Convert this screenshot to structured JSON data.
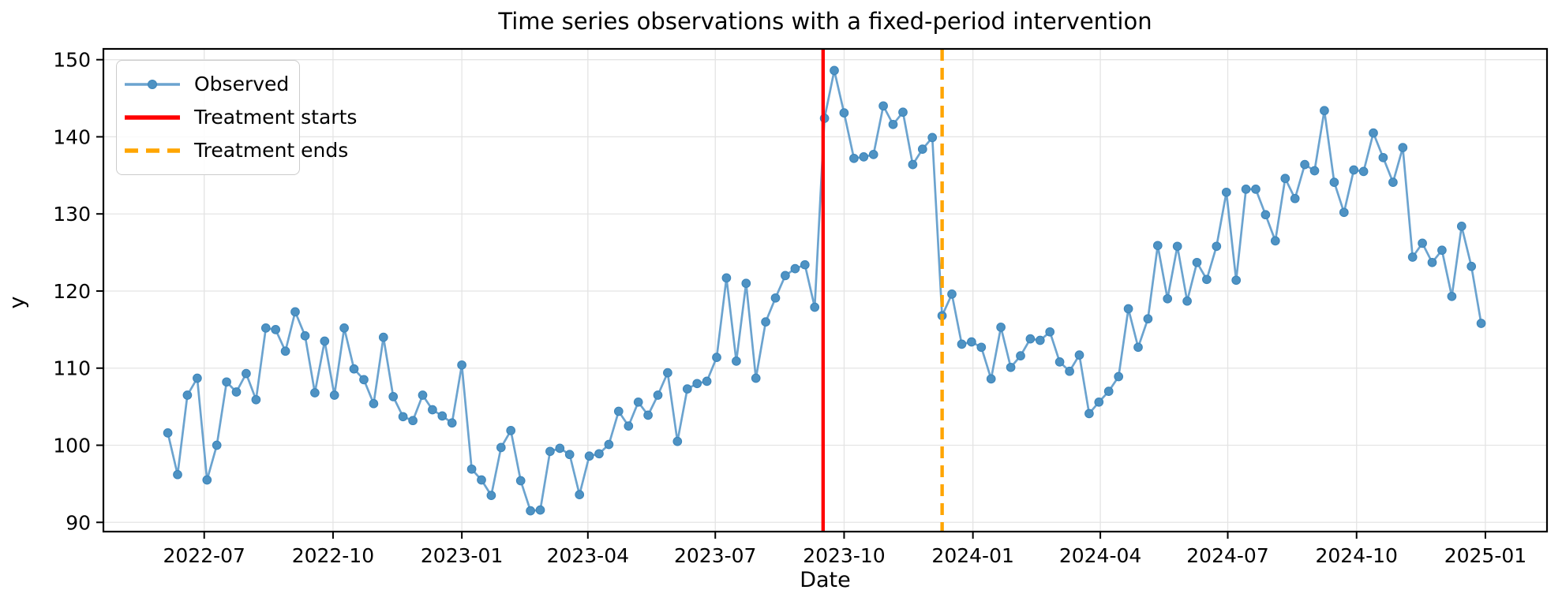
{
  "chart_data": {
    "type": "line",
    "title": "Time series observations with a fixed-period intervention",
    "xlabel": "Date",
    "ylabel": "y",
    "legend": {
      "position": "upper left",
      "entries": {
        "observed": "Observed",
        "treatment_start": "Treatment starts",
        "treatment_end": "Treatment ends"
      }
    },
    "series": {
      "name": "Observed",
      "start_date": "2022-06-05",
      "frequency_days": 7,
      "values": [
        101.6,
        96.2,
        106.5,
        108.7,
        95.5,
        100.0,
        108.2,
        106.9,
        109.3,
        105.9,
        115.2,
        115.0,
        112.2,
        117.3,
        114.2,
        106.8,
        113.5,
        106.5,
        115.2,
        109.9,
        108.5,
        105.4,
        114.0,
        106.3,
        103.7,
        103.2,
        106.5,
        104.6,
        103.8,
        102.9,
        110.4,
        96.9,
        95.5,
        93.5,
        99.7,
        101.9,
        95.4,
        91.5,
        91.6,
        99.2,
        99.6,
        98.8,
        93.6,
        98.6,
        98.9,
        100.1,
        104.4,
        102.5,
        105.6,
        103.9,
        106.5,
        109.4,
        100.5,
        107.3,
        108.0,
        108.3,
        111.4,
        121.7,
        110.9,
        121.0,
        108.7,
        116.0,
        119.1,
        122.0,
        122.9,
        123.4,
        117.9,
        142.4,
        148.6,
        143.1,
        137.2,
        137.4,
        137.7,
        144.0,
        141.6,
        143.2,
        136.4,
        138.4,
        139.9,
        116.8,
        119.6,
        113.1,
        113.4,
        112.7,
        108.6,
        115.3,
        110.1,
        111.6,
        113.8,
        113.6,
        114.7,
        110.8,
        109.6,
        111.7,
        104.1,
        105.6,
        107.0,
        108.9,
        117.7,
        112.7,
        116.4,
        125.9,
        119.0,
        125.8,
        118.7,
        123.7,
        121.5,
        125.8,
        132.8,
        121.4,
        133.2,
        133.2,
        129.9,
        126.5,
        134.6,
        132.0,
        136.4,
        135.6,
        143.4,
        134.1,
        130.2,
        135.7,
        135.5,
        140.5,
        137.3,
        134.1,
        138.6,
        124.4,
        126.2,
        123.7,
        125.3,
        119.3,
        128.4,
        123.2,
        115.8
      ]
    },
    "treatment": {
      "start_date": "2023-09-16",
      "end_date": "2023-12-10"
    },
    "x_ticks": [
      {
        "date": "2022-07-01",
        "label": "2022-07"
      },
      {
        "date": "2022-10-01",
        "label": "2022-10"
      },
      {
        "date": "2023-01-01",
        "label": "2023-01"
      },
      {
        "date": "2023-04-01",
        "label": "2023-04"
      },
      {
        "date": "2023-07-01",
        "label": "2023-07"
      },
      {
        "date": "2023-10-01",
        "label": "2023-10"
      },
      {
        "date": "2024-01-01",
        "label": "2024-01"
      },
      {
        "date": "2024-04-01",
        "label": "2024-04"
      },
      {
        "date": "2024-07-01",
        "label": "2024-07"
      },
      {
        "date": "2024-10-01",
        "label": "2024-10"
      },
      {
        "date": "2025-01-01",
        "label": "2025-01"
      }
    ],
    "y_ticks": [
      90,
      100,
      110,
      120,
      130,
      140,
      150
    ],
    "xlim": [
      "2022-04-20",
      "2025-02-14"
    ],
    "ylim": [
      88.8,
      151.4
    ],
    "grid": true,
    "colors": {
      "observed_line": "#6ba3cf",
      "observed_marker_fill": "#4e92c3",
      "observed_marker_edge": "#3d86bb",
      "treatment_start_line": "#ff0000",
      "treatment_end_line": "#ffa500",
      "grid_line": "#e4e4e4",
      "axis": "#000000"
    }
  }
}
